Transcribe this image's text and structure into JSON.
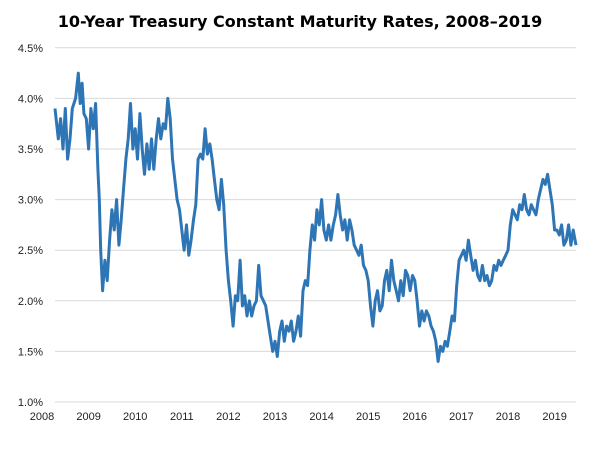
{
  "chart_data": {
    "type": "line",
    "title": "10-Year Treasury Constant Maturity Rates, 2008–2019",
    "xlabel": "",
    "ylabel": "",
    "xlim": [
      2008,
      2019.5
    ],
    "ylim": [
      1.0,
      4.5
    ],
    "x_ticks": [
      "2008",
      "2009",
      "2010",
      "2011",
      "2012",
      "2013",
      "2014",
      "2015",
      "2016",
      "2017",
      "2018",
      "2019"
    ],
    "y_ticks": [
      "1.0%",
      "1.5%",
      "2.0%",
      "2.5%",
      "3.0%",
      "3.5%",
      "4.0%",
      "4.5%"
    ],
    "grid": "horizontal",
    "legend": "none",
    "line_color": "#2e75b6",
    "series": [
      {
        "x": [
          2008.28,
          2008.35,
          2008.4,
          2008.45,
          2008.5,
          2008.55,
          2008.6,
          2008.65,
          2008.72,
          2008.78,
          2008.82,
          2008.86,
          2008.9,
          2008.95,
          2009.0,
          2009.05,
          2009.1,
          2009.15,
          2009.2,
          2009.23,
          2009.26,
          2009.3,
          2009.35,
          2009.4,
          2009.45,
          2009.5,
          2009.55,
          2009.6,
          2009.65,
          2009.7,
          2009.75,
          2009.8,
          2009.85,
          2009.9,
          2009.95,
          2010.0,
          2010.05,
          2010.1,
          2010.15,
          2010.2,
          2010.25,
          2010.3,
          2010.35,
          2010.4,
          2010.45,
          2010.5,
          2010.55,
          2010.6,
          2010.65,
          2010.7,
          2010.75,
          2010.8,
          2010.85,
          2010.9,
          2010.95,
          2011.0,
          2011.05,
          2011.1,
          2011.15,
          2011.2,
          2011.25,
          2011.3,
          2011.35,
          2011.4,
          2011.45,
          2011.5,
          2011.55,
          2011.6,
          2011.65,
          2011.7,
          2011.75,
          2011.8,
          2011.85,
          2011.9,
          2011.95,
          2012.0,
          2012.05,
          2012.1,
          2012.15,
          2012.2,
          2012.25,
          2012.3,
          2012.35,
          2012.4,
          2012.45,
          2012.5,
          2012.55,
          2012.6,
          2012.65,
          2012.7,
          2012.75,
          2012.8,
          2012.85,
          2012.9,
          2012.95,
          2013.0,
          2013.05,
          2013.1,
          2013.15,
          2013.2,
          2013.25,
          2013.3,
          2013.35,
          2013.4,
          2013.45,
          2013.5,
          2013.55,
          2013.6,
          2013.65,
          2013.7,
          2013.75,
          2013.8,
          2013.85,
          2013.9,
          2013.95,
          2014.0,
          2014.05,
          2014.1,
          2014.15,
          2014.2,
          2014.25,
          2014.3,
          2014.35,
          2014.4,
          2014.45,
          2014.5,
          2014.55,
          2014.6,
          2014.65,
          2014.7,
          2014.75,
          2014.8,
          2014.85,
          2014.9,
          2014.95,
          2015.0,
          2015.05,
          2015.1,
          2015.15,
          2015.2,
          2015.25,
          2015.3,
          2015.35,
          2015.4,
          2015.45,
          2015.5,
          2015.55,
          2015.6,
          2015.65,
          2015.7,
          2015.75,
          2015.8,
          2015.85,
          2015.9,
          2015.95,
          2016.0,
          2016.05,
          2016.1,
          2016.15,
          2016.2,
          2016.25,
          2016.3,
          2016.35,
          2016.4,
          2016.45,
          2016.5,
          2016.55,
          2016.6,
          2016.65,
          2016.7,
          2016.75,
          2016.8,
          2016.85,
          2016.9,
          2016.95,
          2017.0,
          2017.05,
          2017.1,
          2017.15,
          2017.2,
          2017.25,
          2017.3,
          2017.35,
          2017.4,
          2017.45,
          2017.5,
          2017.55,
          2017.6,
          2017.65,
          2017.7,
          2017.75,
          2017.8,
          2017.85,
          2017.9,
          2017.95,
          2018.0,
          2018.05,
          2018.1,
          2018.15,
          2018.2,
          2018.25,
          2018.3,
          2018.35,
          2018.4,
          2018.45,
          2018.5,
          2018.55,
          2018.6,
          2018.65,
          2018.7,
          2018.75,
          2018.8,
          2018.85,
          2018.9,
          2018.95,
          2019.0,
          2019.05,
          2019.1,
          2019.15,
          2019.2,
          2019.25,
          2019.3,
          2019.35,
          2019.4,
          2019.46
        ],
        "values": [
          3.9,
          3.6,
          3.8,
          3.5,
          3.9,
          3.4,
          3.6,
          3.9,
          4.0,
          4.25,
          3.95,
          4.15,
          3.85,
          3.8,
          3.5,
          3.9,
          3.7,
          3.95,
          3.3,
          3.0,
          2.5,
          2.1,
          2.4,
          2.2,
          2.6,
          2.9,
          2.7,
          3.0,
          2.55,
          2.8,
          3.1,
          3.4,
          3.6,
          3.95,
          3.5,
          3.7,
          3.4,
          3.85,
          3.5,
          3.25,
          3.55,
          3.3,
          3.6,
          3.3,
          3.6,
          3.8,
          3.6,
          3.75,
          3.7,
          4.0,
          3.8,
          3.4,
          3.2,
          3.0,
          2.9,
          2.7,
          2.5,
          2.75,
          2.45,
          2.6,
          2.8,
          2.95,
          3.4,
          3.45,
          3.4,
          3.7,
          3.45,
          3.55,
          3.4,
          3.2,
          3.0,
          2.9,
          3.2,
          2.95,
          2.5,
          2.2,
          2.0,
          1.75,
          2.05,
          2.0,
          2.4,
          1.95,
          2.05,
          1.85,
          2.0,
          1.85,
          1.95,
          2.0,
          2.35,
          2.05,
          2.0,
          1.95,
          1.8,
          1.65,
          1.5,
          1.6,
          1.45,
          1.7,
          1.8,
          1.6,
          1.75,
          1.7,
          1.8,
          1.6,
          1.7,
          1.85,
          1.65,
          2.1,
          2.2,
          2.15,
          2.5,
          2.75,
          2.6,
          2.9,
          2.75,
          3.0,
          2.7,
          2.6,
          2.75,
          2.6,
          2.75,
          2.85,
          3.05,
          2.85,
          2.7,
          2.8,
          2.6,
          2.8,
          2.7,
          2.55,
          2.5,
          2.45,
          2.55,
          2.35,
          2.3,
          2.2,
          1.95,
          1.75,
          2.0,
          2.1,
          1.9,
          1.95,
          2.2,
          2.3,
          2.1,
          2.4,
          2.2,
          2.1,
          2.0,
          2.2,
          2.05,
          2.3,
          2.25,
          2.1,
          2.25,
          2.2,
          2.0,
          1.75,
          1.9,
          1.8,
          1.9,
          1.85,
          1.75,
          1.7,
          1.6,
          1.4,
          1.55,
          1.5,
          1.6,
          1.55,
          1.7,
          1.85,
          1.8,
          2.15,
          2.4,
          2.45,
          2.5,
          2.4,
          2.6,
          2.45,
          2.3,
          2.4,
          2.25,
          2.2,
          2.35,
          2.2,
          2.25,
          2.15,
          2.2,
          2.35,
          2.3,
          2.4,
          2.35,
          2.4,
          2.45,
          2.5,
          2.75,
          2.9,
          2.85,
          2.8,
          2.95,
          2.9,
          3.05,
          2.9,
          2.85,
          2.95,
          2.9,
          2.85,
          3.0,
          3.1,
          3.2,
          3.15,
          3.25,
          3.1,
          2.95,
          2.7,
          2.7,
          2.65,
          2.75,
          2.55,
          2.6,
          2.75,
          2.55,
          2.7,
          2.55
        ]
      }
    ]
  }
}
